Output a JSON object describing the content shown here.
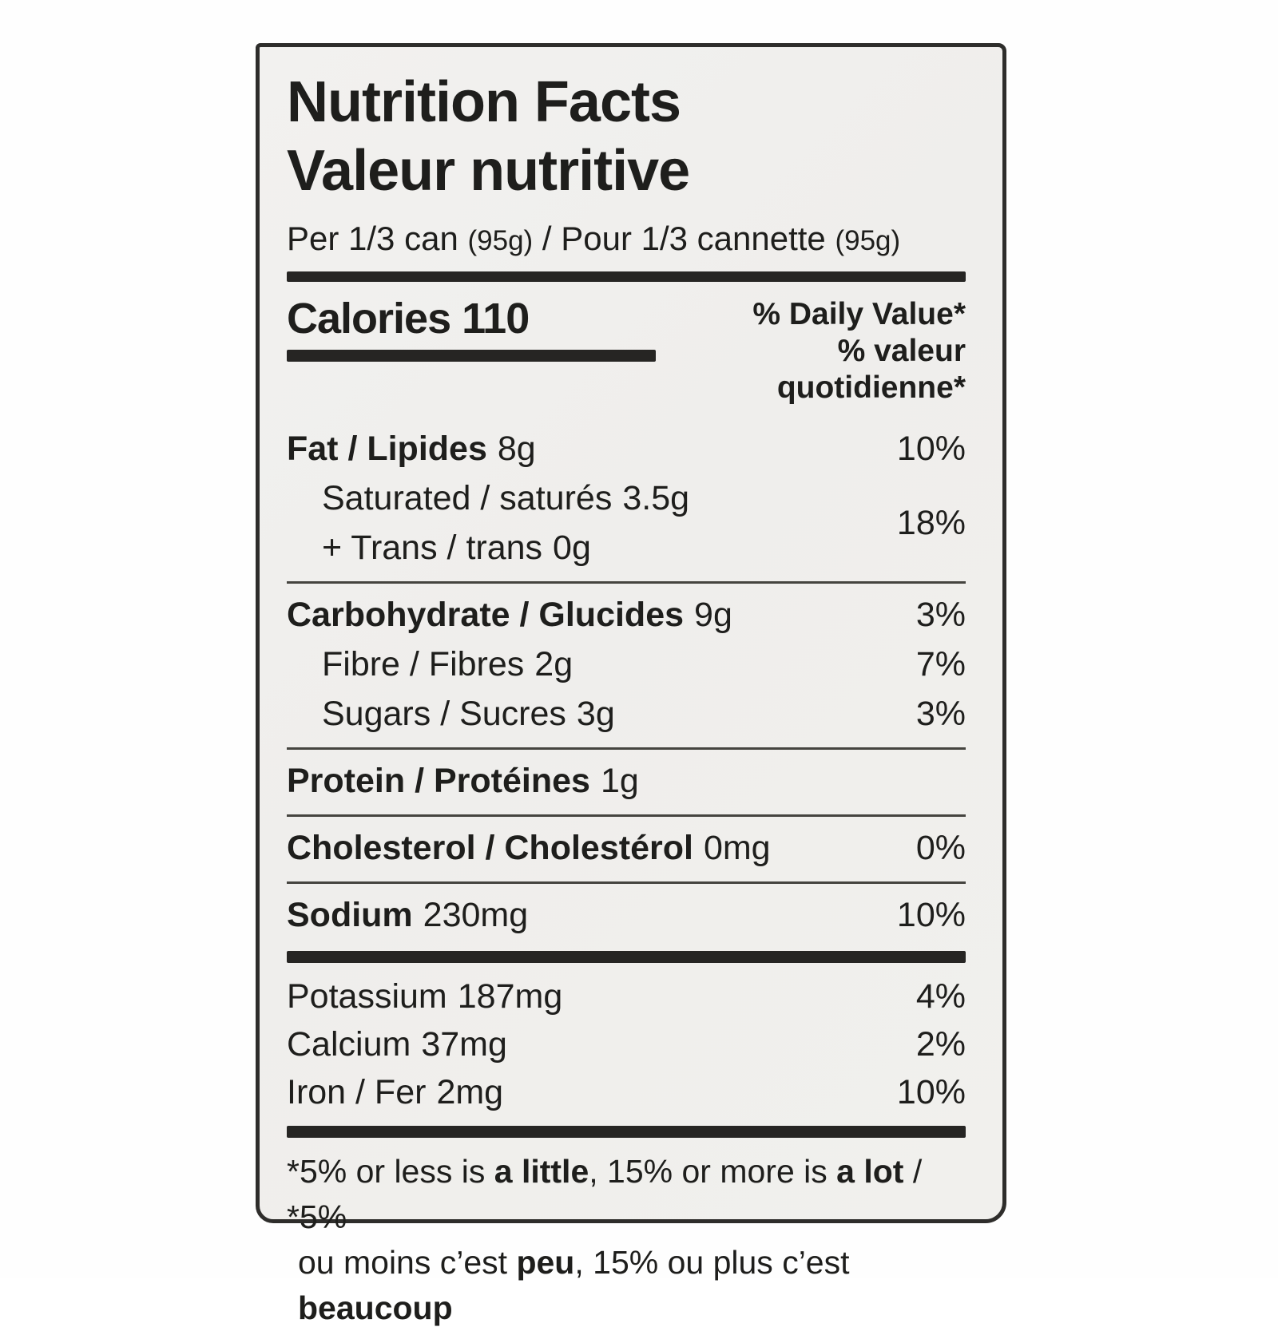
{
  "colors": {
    "page_bg": "#fefefe",
    "label_bg": "#f1f0ee",
    "border": "#2e2d2b",
    "bar": "#262523",
    "text": "#1e1e1c"
  },
  "label": {
    "title_en": "Nutrition Facts",
    "title_fr": "Valeur nutritive",
    "serving": {
      "en": "Per 1/3 can",
      "en_qty": "(95g)",
      "sep": "/",
      "fr": "Pour 1/3 cannette",
      "fr_qty": "(95g)"
    },
    "calories": {
      "label": "Calories",
      "value": "110"
    },
    "daily_value_en": "% Daily Value*",
    "daily_value_fr": "% valeur quotidienne*",
    "nutrients": {
      "fat": {
        "label": "Fat / Lipides",
        "amount": "8g",
        "dv": "10%"
      },
      "saturated": {
        "label": "Saturated / saturés",
        "amount": "3.5g"
      },
      "trans": {
        "label": "+ Trans / trans",
        "amount": "0g"
      },
      "sat_trans_dv": "18%",
      "carbohydrate": {
        "label": "Carbohydrate / Glucides",
        "amount": "9g",
        "dv": "3%"
      },
      "fibre": {
        "label": "Fibre / Fibres",
        "amount": "2g",
        "dv": "7%"
      },
      "sugars": {
        "label": "Sugars / Sucres",
        "amount": "3g",
        "dv": "3%"
      },
      "protein": {
        "label": "Protein / Protéines",
        "amount": "1g"
      },
      "cholesterol": {
        "label": "Cholesterol / Cholestérol",
        "amount": "0mg",
        "dv": "0%"
      },
      "sodium": {
        "label": "Sodium",
        "amount": "230mg",
        "dv": "10%"
      },
      "potassium": {
        "label": "Potassium",
        "amount": "187mg",
        "dv": "4%"
      },
      "calcium": {
        "label": "Calcium",
        "amount": "37mg",
        "dv": "2%"
      },
      "iron": {
        "label": "Iron / Fer",
        "amount": "2mg",
        "dv": "10%"
      }
    },
    "footnote": {
      "en": {
        "p1": "*5% or less is ",
        "b1": "a little",
        "p2": ", 15% or more is ",
        "b2": "a lot",
        "p3": " / *5%"
      },
      "fr": {
        "p1": "ou moins c’est ",
        "b1": "peu",
        "p2": ", 15% ou plus c’est ",
        "b2": "beaucoup"
      }
    }
  }
}
